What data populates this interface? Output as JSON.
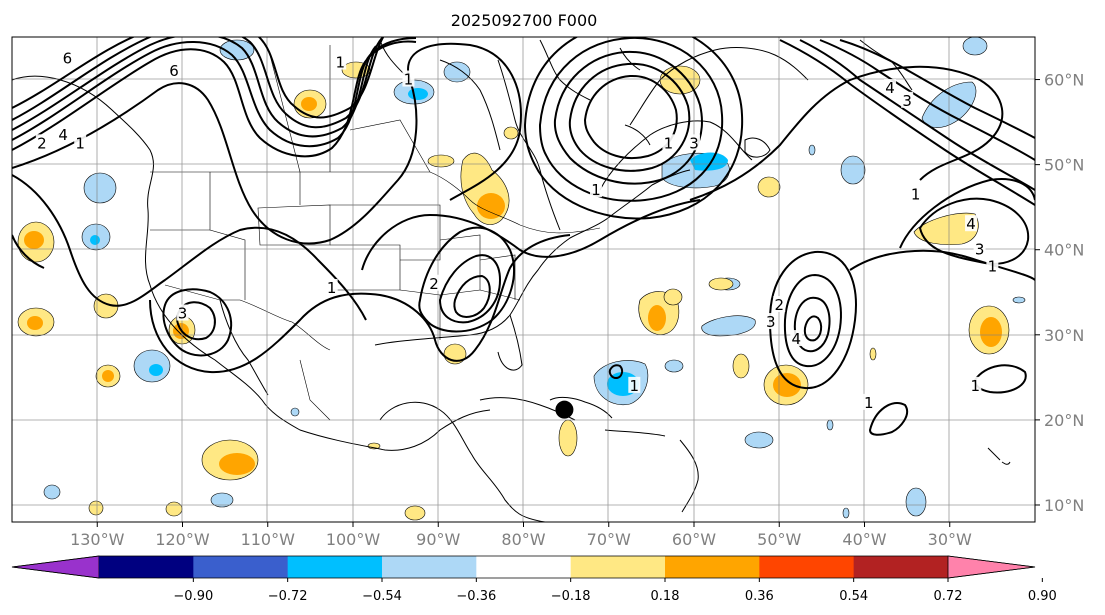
{
  "map": {
    "title": "2025092700 F000",
    "extent": {
      "lon": [
        -140,
        -20
      ],
      "lat": [
        8,
        65
      ]
    },
    "gridlines": true,
    "lon_ticks": [
      {
        "lon": -130,
        "label": "130°W"
      },
      {
        "lon": -120,
        "label": "120°W"
      },
      {
        "lon": -110,
        "label": "110°W"
      },
      {
        "lon": -100,
        "label": "100°W"
      },
      {
        "lon": -90,
        "label": "90°W"
      },
      {
        "lon": -80,
        "label": "80°W"
      },
      {
        "lon": -70,
        "label": "70°W"
      },
      {
        "lon": -60,
        "label": "60°W"
      },
      {
        "lon": -50,
        "label": "50°W"
      },
      {
        "lon": -40,
        "label": "40°W"
      },
      {
        "lon": -30,
        "label": "30°W"
      }
    ],
    "lat_ticks": [
      {
        "lat": 60,
        "label": "60°N"
      },
      {
        "lat": 50,
        "label": "50°N"
      },
      {
        "lat": 40,
        "label": "40°N"
      },
      {
        "lat": 30,
        "label": "30°N"
      },
      {
        "lat": 20,
        "label": "20°N"
      },
      {
        "lat": 10,
        "label": "10°N"
      }
    ],
    "marker": {
      "lon": -75.2,
      "lat": 21.2,
      "color": "#000000"
    },
    "contour_labels": [
      {
        "text": "6",
        "lon": -133.5,
        "lat": 62.5
      },
      {
        "text": "6",
        "lon": -121,
        "lat": 61
      },
      {
        "text": "4",
        "lon": -134,
        "lat": 53.5
      },
      {
        "text": "2",
        "lon": -136.5,
        "lat": 52.5
      },
      {
        "text": "1",
        "lon": -132,
        "lat": 52.5
      },
      {
        "text": "1",
        "lon": -101.5,
        "lat": 62
      },
      {
        "text": "1",
        "lon": -93.5,
        "lat": 60
      },
      {
        "text": "3",
        "lon": -60,
        "lat": 52.5
      },
      {
        "text": "1",
        "lon": -63,
        "lat": 52.5
      },
      {
        "text": "1",
        "lon": -71.5,
        "lat": 47
      },
      {
        "text": "1",
        "lon": -102.5,
        "lat": 35.5
      },
      {
        "text": "2",
        "lon": -90.5,
        "lat": 36
      },
      {
        "text": "3",
        "lon": -120,
        "lat": 32.5
      },
      {
        "text": "3",
        "lon": -35,
        "lat": 57.5
      },
      {
        "text": "4",
        "lon": -37,
        "lat": 59
      },
      {
        "text": "1",
        "lon": -34,
        "lat": 46.5
      },
      {
        "text": "4",
        "lon": -27.5,
        "lat": 43
      },
      {
        "text": "3",
        "lon": -26.5,
        "lat": 40
      },
      {
        "text": "1",
        "lon": -25,
        "lat": 38
      },
      {
        "text": "2",
        "lon": -50,
        "lat": 33.5
      },
      {
        "text": "3",
        "lon": -51,
        "lat": 31.5
      },
      {
        "text": "4",
        "lon": -48,
        "lat": 29.5
      },
      {
        "text": "1",
        "lon": -67,
        "lat": 24
      },
      {
        "text": "1",
        "lon": -27,
        "lat": 24
      },
      {
        "text": "1",
        "lon": -39.5,
        "lat": 22
      }
    ]
  },
  "colorbar": {
    "colors": [
      "#9932cc",
      "#000080",
      "#3a5fcd",
      "#00bfff",
      "#add8f6",
      "#ffffff",
      "#ffe884",
      "#ffa500",
      "#ff4500",
      "#b22222",
      "#ff82ab"
    ],
    "ticks": [
      "−0.90",
      "−0.72",
      "−0.54",
      "−0.36",
      "−0.18",
      "0.18",
      "0.36",
      "0.54",
      "0.72",
      "0.90"
    ],
    "contour_color": "#000000",
    "land_color": "#ffffff"
  }
}
